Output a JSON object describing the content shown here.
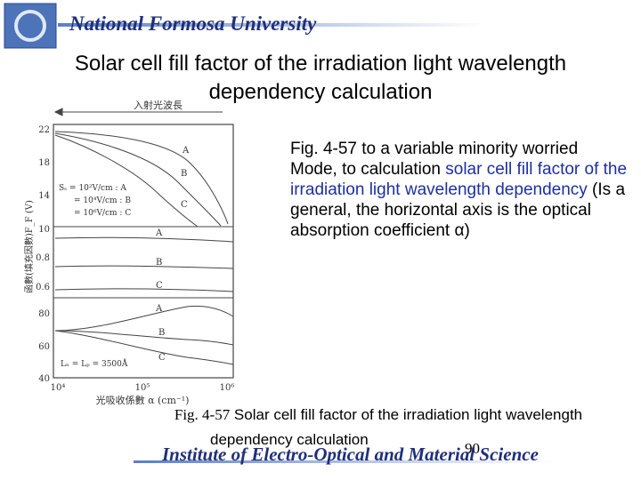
{
  "header": {
    "university": "National Formosa University",
    "title_lines": [
      "Solar cell  fill factor of the irradiation light wavelength",
      "dependency calculation"
    ]
  },
  "figure": {
    "arrow_label": "入射光波長",
    "y_label": "函數(填充因數)F_F (V)",
    "y_ticks": [
      "22",
      "18",
      "14",
      "10",
      "0.8",
      "0.6",
      "80",
      "60",
      "40"
    ],
    "x_ticks": [
      "10⁴",
      "10⁵",
      "10⁶"
    ],
    "x_label": "光吸收係數 α (cm⁻¹)",
    "legend": [
      "Sₛ = 10²V/cm : A",
      "= 10⁴V/cm : B",
      "= 10⁶V/cm : C"
    ],
    "param": "Lₙ = Lₚ = 3500Å",
    "curve_labels": [
      "A",
      "B",
      "C",
      "A",
      "B",
      "C",
      "A",
      "B",
      "C"
    ]
  },
  "body": {
    "parts": [
      "Fig. 4-57 to a variable minority worried Mode, to calculation ",
      "solar cell  fill factor of the irradiation light wavelength dependency",
      "  (Is a general, the horizontal axis is the optical absorption coefficient α)"
    ]
  },
  "caption": {
    "fig": "Fig. 4-57",
    "line1": " Solar cell  fill factor of the irradiation light wavelength",
    "line2": "dependency calculation"
  },
  "footer": {
    "institute": "Institute of Electro-Optical and Material Science",
    "page": "90"
  }
}
